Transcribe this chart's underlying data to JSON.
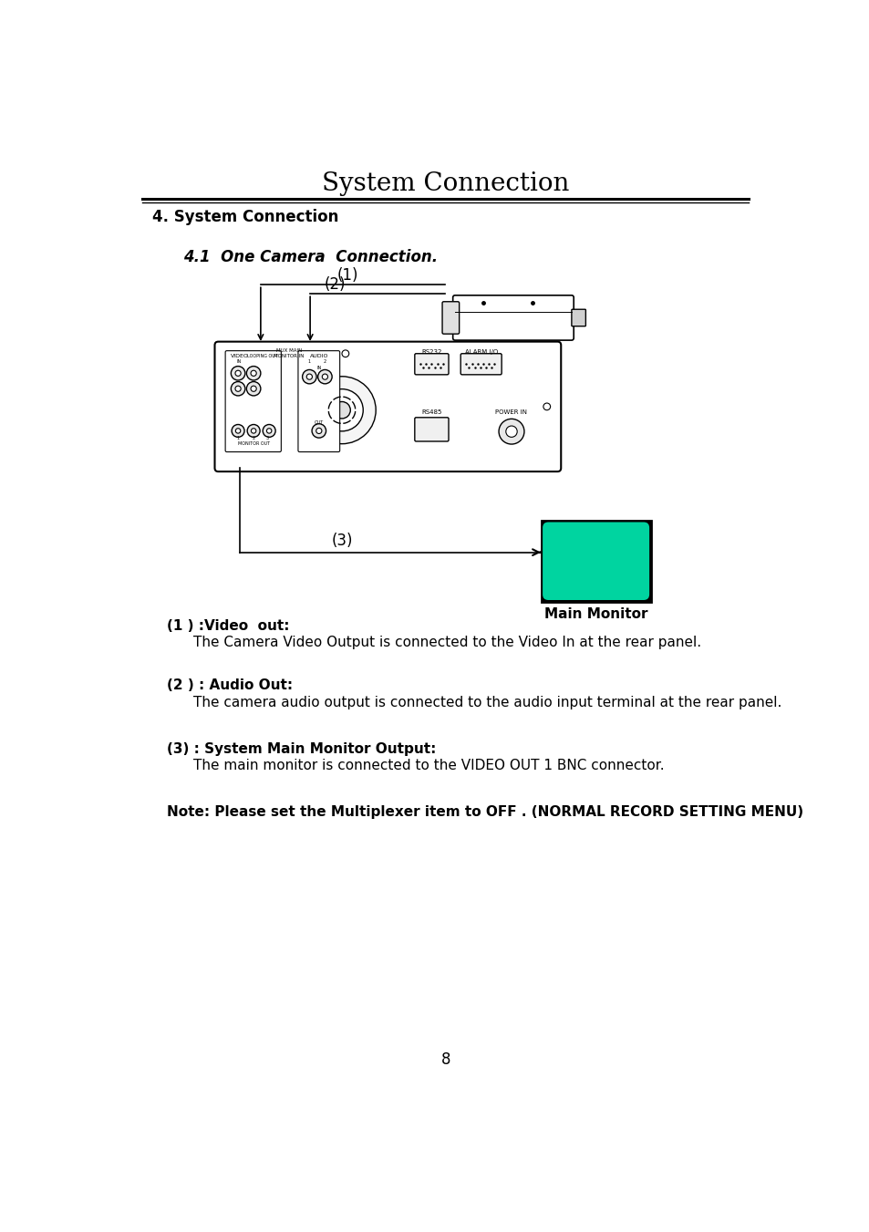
{
  "title": "System Connection",
  "section_title": "4. System Connection",
  "subsection_title": "4.1  One Camera  Connection.",
  "main_monitor_label": "Main Monitor",
  "page_number": "8",
  "background_color": "#ffffff",
  "text_color": "#000000",
  "monitor_screen_color": "#00d4a0",
  "line1_label": "(1)",
  "line2_label": "(2)",
  "line3_label": "(3)",
  "desc1_bold": "(1 ) :Video  out",
  "desc1_text": "The Camera Video Output is connected to the Video In at the rear panel.",
  "desc2_bold": "(2 ) : Audio Out:",
  "desc2_text": "The camera audio output is connected to the audio input terminal at the rear panel.",
  "desc3_bold": "(3) : System Main Monitor Output",
  "desc3_colon": ":",
  "desc3_text": "The main monitor is connected to the VIDEO OUT 1 BNC connector.",
  "note_text": "Note: Please set the Multiplexer item to OFF . (NORMAL RECORD SETTING MENU)"
}
